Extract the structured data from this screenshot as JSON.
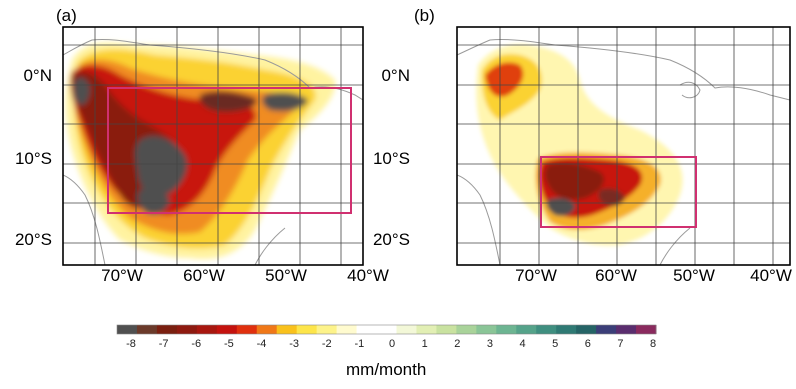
{
  "panels": [
    {
      "label": "(a)",
      "box": {
        "lon_min": -73.5,
        "lon_max": -40.5,
        "lat_min": -16.5,
        "lat_max": -1.5,
        "color": "#d03070"
      }
    },
    {
      "label": "(b)",
      "box": {
        "lon_min": -70,
        "lon_max": -50,
        "lat_min": -17.5,
        "lat_max": -9.5,
        "color": "#d03070"
      }
    }
  ],
  "map": {
    "lat_ticks": [
      {
        "value": 0,
        "label": "0°N"
      },
      {
        "value": -10,
        "label": "10°S"
      },
      {
        "value": -20,
        "label": "20°S"
      }
    ],
    "lon_ticks": [
      {
        "value": -70,
        "label": "70°W"
      },
      {
        "value": -60,
        "label": "60°W"
      },
      {
        "value": -50,
        "label": "50°W"
      },
      {
        "value": -40,
        "label": "40°W"
      }
    ],
    "lon_range": [
      -79,
      -37
    ],
    "lat_range": [
      -24,
      6
    ],
    "grid_step_deg": 5
  },
  "colorbar": {
    "ticks": [
      "-8",
      "-7",
      "-6",
      "-5",
      "-4",
      "-3",
      "-2",
      "-1",
      "0",
      "1",
      "2",
      "3",
      "4",
      "5",
      "6",
      "7",
      "8"
    ],
    "colors": [
      "#505050",
      "#6b3a2a",
      "#7a1f10",
      "#8e1a10",
      "#a8170f",
      "#c4120e",
      "#e0300e",
      "#f07818",
      "#f9c11c",
      "#fde54a",
      "#fdf38a",
      "#fffbcf",
      "#ffffff",
      "#ffffff",
      "#f3f8d8",
      "#e2efb4",
      "#c9e2a0",
      "#a9d39a",
      "#8ac597",
      "#6db592",
      "#55a38a",
      "#3f8f80",
      "#2f7a74",
      "#256466",
      "#3b3e78",
      "#5a2d6e",
      "#8a2a5e"
    ],
    "units": "mm/month"
  }
}
